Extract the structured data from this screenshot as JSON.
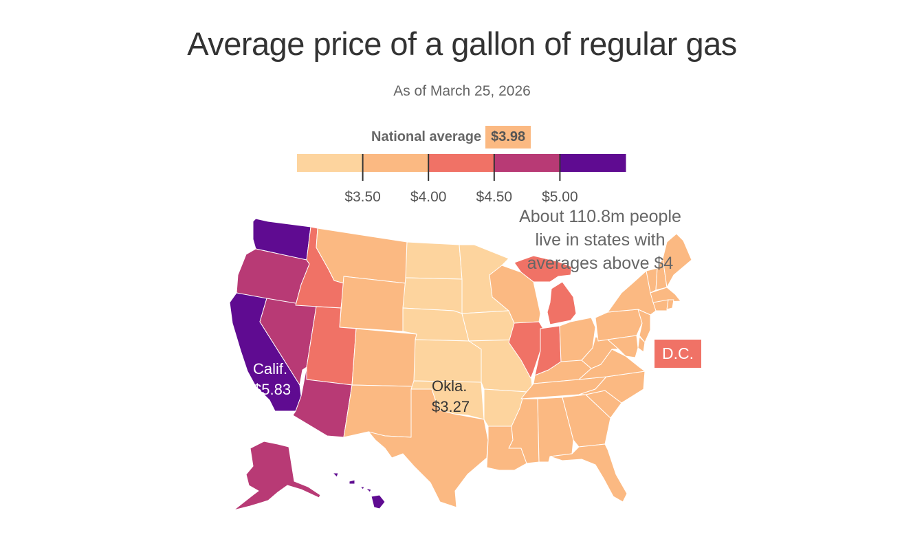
{
  "header": {
    "title": "Average price of a gallon of regular gas",
    "subtitle": "As of March 25, 2026"
  },
  "legend": {
    "national_average_label": "National average",
    "national_average_value": "$3.98",
    "tick_labels": [
      "$3.50",
      "$4.00",
      "$4.50",
      "$5.00"
    ]
  },
  "annotations": {
    "people_note": [
      "About 110.8m people",
      "live in states with",
      "averages above $4"
    ],
    "calif_name": "Calif.",
    "calif_value": "$5.83",
    "okla_name": "Okla.",
    "okla_value": "$3.27",
    "dc_name": "D.C."
  },
  "chart_data": {
    "type": "choropleth",
    "title": "Average price of a gallon of regular gas",
    "subtitle": "As of March 25, 2026",
    "unit": "USD per gallon",
    "national_average": 3.98,
    "bins": [
      {
        "range": [
          null,
          3.5
        ],
        "label": "under $3.50",
        "color": "#FDD49E"
      },
      {
        "range": [
          3.5,
          4.0
        ],
        "label": "$3.50–$4.00",
        "color": "#FBB982"
      },
      {
        "range": [
          4.0,
          4.5
        ],
        "label": "$4.00–$4.50",
        "color": "#F07266"
      },
      {
        "range": [
          4.5,
          5.0
        ],
        "label": "$4.50–$5.00",
        "color": "#B83A75"
      },
      {
        "range": [
          5.0,
          null
        ],
        "label": "$5.00 and above",
        "color": "#5F0B91"
      }
    ],
    "breaks": [
      3.5,
      4.0,
      4.5,
      5.0
    ],
    "labeled_values": {
      "CA": 5.83,
      "OK": 3.27
    },
    "state_bins": {
      "WA": 4,
      "OR": 3,
      "CA": 4,
      "NV": 3,
      "AZ": 3,
      "AK": 3,
      "HI": 4,
      "ID": 2,
      "UT": 2,
      "IL": 2,
      "IN": 2,
      "MI": 2,
      "DC": 2,
      "MT": 1,
      "WY": 1,
      "CO": 1,
      "NM": 1,
      "TX": 1,
      "WI": 1,
      "OH": 1,
      "KY": 1,
      "TN": 1,
      "LA": 1,
      "MS": 1,
      "AL": 1,
      "GA": 1,
      "FL": 1,
      "SC": 1,
      "NC": 1,
      "VA": 1,
      "WV": 1,
      "PA": 1,
      "NY": 1,
      "NJ": 1,
      "DE": 1,
      "MD": 1,
      "CT": 1,
      "RI": 1,
      "MA": 1,
      "VT": 1,
      "NH": 1,
      "ME": 1,
      "ND": 0,
      "SD": 0,
      "NE": 0,
      "KS": 0,
      "OK": 0,
      "MN": 0,
      "IA": 0,
      "MO": 0,
      "AR": 0
    },
    "annotation": "About 110.8m people live in states with averages above $4"
  }
}
